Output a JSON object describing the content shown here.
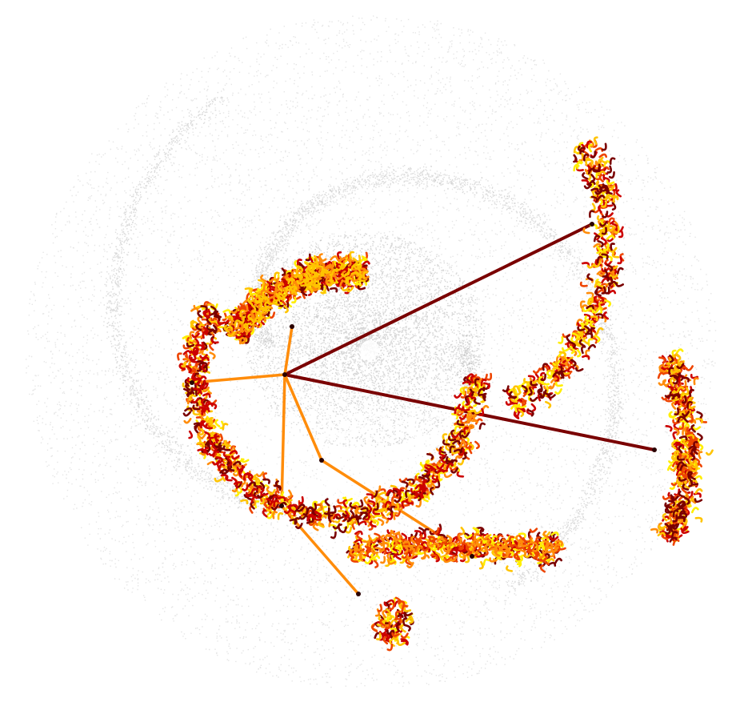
{
  "image": {
    "subject": "tree-graph-overlay-on-spiral-particle-field",
    "background_color": "#ffffff",
    "particle_color": "#8a8a8a",
    "edge_color": "#ffffff",
    "trunk_color": "#7a0000",
    "branch_color": "#ff8c0a",
    "leaf_palette": [
      "#7a0000",
      "#cc0000",
      "#ee4400",
      "#ff8c0a",
      "#ffc400",
      "#ffee00"
    ]
  }
}
